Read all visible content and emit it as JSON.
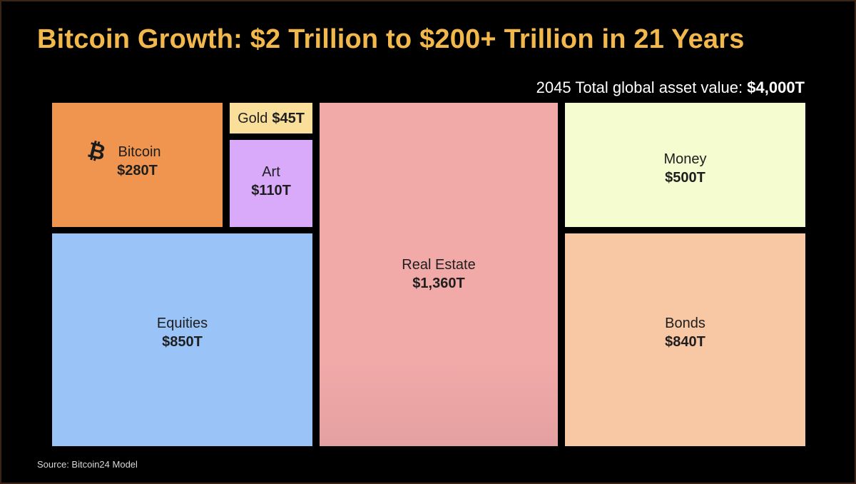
{
  "title": "Bitcoin Growth: $2 Trillion to $200+ Trillion in 21 Years",
  "total": {
    "label": "2045 Total global asset value: ",
    "value": "$4,000T"
  },
  "source": "Source: Bitcoin24 Model",
  "colors": {
    "title": "#f2b84b",
    "bitcoin": "#f0954f",
    "gold": "#f9df9a",
    "art": "#d9aafa",
    "equities": "#9ac4f8",
    "real_estate": "#f1aaa8",
    "money": "#f5fcd0",
    "bonds": "#f8c7a4"
  },
  "chart_data": {
    "type": "treemap",
    "title": "Bitcoin Growth: $2 Trillion to $200+ Trillion in 21 Years",
    "total_label": "2045 Total global asset value",
    "total_value": 4000,
    "unit": "T",
    "items": [
      {
        "name": "Bitcoin",
        "value": 280,
        "label": "$280T",
        "icon": "bitcoin-icon"
      },
      {
        "name": "Gold",
        "value": 45,
        "label": "$45T"
      },
      {
        "name": "Art",
        "value": 110,
        "label": "$110T"
      },
      {
        "name": "Equities",
        "value": 850,
        "label": "$850T"
      },
      {
        "name": "Real Estate",
        "value": 1360,
        "label": "$1,360T"
      },
      {
        "name": "Money",
        "value": 500,
        "label": "$500T"
      },
      {
        "name": "Bonds",
        "value": 840,
        "label": "$840T"
      }
    ]
  }
}
